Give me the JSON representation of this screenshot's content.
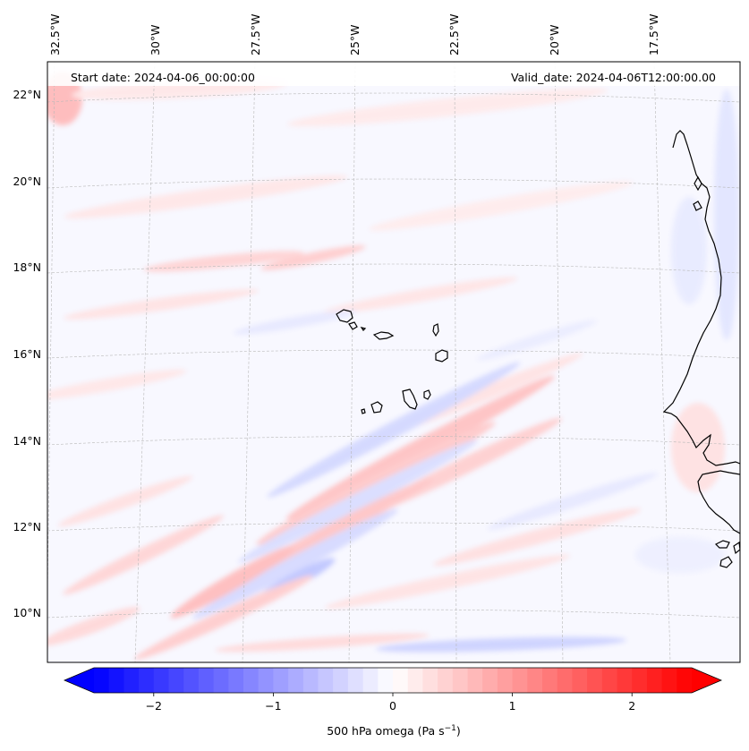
{
  "map": {
    "variable_label": "500 hPa omega (Pa s",
    "variable_exponent": "−1",
    "variable_close": ")",
    "start_date": "Start date: 2024-04-06_00:00:00",
    "valid_date": "Valid_date: 2024-04-06T12:00:00.00",
    "longitude_labels": [
      "32.5°W",
      "30°W",
      "27.5°W",
      "25°W",
      "22.5°W",
      "20°W",
      "17.5°W"
    ],
    "latitude_labels": [
      "22°N",
      "20°N",
      "18°N",
      "16°N",
      "14°N",
      "12°N",
      "10°N"
    ],
    "extent": {
      "lon_min": -32.8,
      "lon_max": -15.3,
      "lat_min": 8.9,
      "lat_max": 22.7
    }
  },
  "colorbar": {
    "ticks": [
      "−2",
      "−1",
      "0",
      "1",
      "2"
    ],
    "tick_values": [
      -2,
      -1,
      0,
      1,
      2
    ],
    "range": [
      -2.5,
      2.5
    ],
    "colors": {
      "neg": "#0000ff",
      "mid": "#ffffff",
      "pos": "#ff0000"
    }
  },
  "colors": {
    "coast": "#000000",
    "grid": "#b0b0b0",
    "background": "#f8f8ff"
  }
}
